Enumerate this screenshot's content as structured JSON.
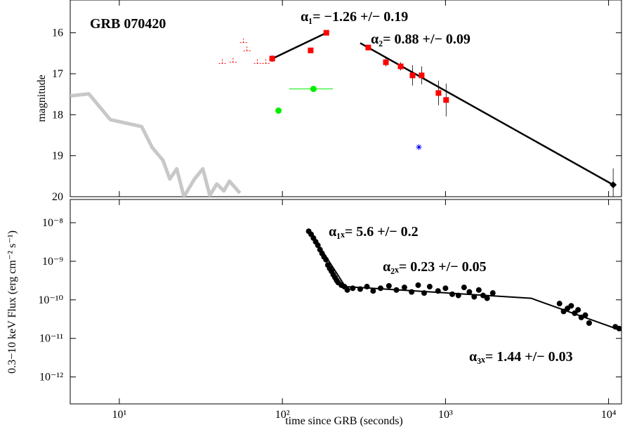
{
  "chart_data": [
    {
      "type": "scatter",
      "title": "GRB 070420",
      "ylabel": "magnitude",
      "xscale": "log",
      "xlim": [
        5,
        12000
      ],
      "xticks": [
        10,
        100,
        1000,
        10000
      ],
      "ylim": [
        15.2,
        20
      ],
      "yreverse": true,
      "yticks": [
        16,
        17,
        18,
        19,
        20
      ],
      "annotations": [
        "α₁= −1.26 +/− 0.19",
        "α₂= 0.88 +/− 0.09"
      ],
      "series": [
        {
          "marker": "line",
          "color": "#c8c8c8",
          "linewidth": 5,
          "x": [
            5,
            6.5,
            8.8,
            13.7,
            15.9,
            18.5,
            20.4,
            22.5,
            24.9,
            28.9,
            32.5,
            35.9,
            39.6,
            43.8,
            47.3,
            54.9
          ],
          "values": [
            17.54,
            17.49,
            18.12,
            18.29,
            18.8,
            19.11,
            19.57,
            19.32,
            20.0,
            19.57,
            19.32,
            19.97,
            19.69,
            19.86,
            19.62,
            19.91
          ]
        },
        {
          "marker": "tick",
          "color": "#ff0000",
          "x": [
            42.8,
            49.8,
            57.7,
            60.6,
            70.3,
            79.2
          ],
          "values": [
            16.75,
            16.72,
            16.24,
            16.44,
            16.75,
            16.75
          ]
        },
        {
          "marker": "line",
          "color": "#000000",
          "linewidth": 2.5,
          "x": [
            87,
            186
          ],
          "values": [
            16.63,
            16.0
          ]
        },
        {
          "marker": "line",
          "color": "#000000",
          "linewidth": 2.5,
          "x": [
            300,
            10670
          ],
          "values": [
            16.25,
            19.71
          ]
        },
        {
          "marker": "square",
          "color": "#ff0000",
          "x": [
            86.6,
            149,
            186,
            336,
            431,
            531,
            628,
            714,
            906,
            1009
          ],
          "values": [
            16.63,
            16.43,
            16.0,
            16.36,
            16.72,
            16.82,
            17.04,
            17.04,
            17.47,
            17.64
          ],
          "yerr": [
            0.08,
            0.06,
            0.05,
            0.05,
            0.1,
            0.1,
            0.25,
            0.22,
            0.3,
            0.4
          ]
        },
        {
          "marker": "circle",
          "color": "#00ee00",
          "x": [
            94.6,
            155
          ],
          "values": [
            17.9,
            17.37
          ],
          "xmin": [
            null,
            110
          ],
          "xmax": [
            null,
            204
          ]
        },
        {
          "marker": "star",
          "color": "#0000ff",
          "x": [
            687
          ],
          "values": [
            18.79
          ]
        },
        {
          "marker": "diamond",
          "color": "#000000",
          "x": [
            10670
          ],
          "values": [
            19.71
          ],
          "yerr": [
            0.4
          ]
        }
      ]
    },
    {
      "type": "scatter",
      "xlabel": "time since GRB (seconds)",
      "ylabel": "0.3−10 keV Flux (erg cm⁻² s⁻¹)",
      "xscale": "log",
      "yscale": "log",
      "xlim": [
        5,
        12000
      ],
      "xticks": [
        {
          "value": 10,
          "label": "10¹"
        },
        {
          "value": 100,
          "label": "10²"
        },
        {
          "value": 1000,
          "label": "10³"
        },
        {
          "value": 10000,
          "label": "10⁴"
        }
      ],
      "ylim": [
        2e-13,
        4e-08
      ],
      "yticks": [
        {
          "value": 1e-12,
          "label": "10⁻¹²"
        },
        {
          "value": 1e-11,
          "label": "10⁻¹¹"
        },
        {
          "value": 1e-10,
          "label": "10⁻¹⁰"
        },
        {
          "value": 1e-09,
          "label": "10⁻⁹"
        },
        {
          "value": 1e-08,
          "label": "10⁻⁸"
        }
      ],
      "annotations": [
        "α₁ₓ= 5.6 +/− 0.2",
        "α₂ₓ= 0.23 +/− 0.05",
        "α₃ₓ= 1.44 +/− 0.03"
      ],
      "series": [
        {
          "marker": "line",
          "color": "#000000",
          "linewidth": 2,
          "x": [
            145,
            243,
            3350,
            12000
          ],
          "values": [
            6.6e-09,
            2.2e-10,
            1.1e-10,
            1.6e-11
          ]
        },
        {
          "marker": "dot",
          "color": "#000000",
          "x": [
            145,
            150,
            155,
            160,
            165,
            170,
            175,
            180,
            185,
            190,
            195,
            200,
            205,
            210,
            215,
            220,
            230,
            240,
            250,
            270,
            300,
            330,
            360,
            400,
            450,
            500,
            560,
            620,
            680,
            740,
            800,
            900,
            1000,
            1100,
            1200,
            1300,
            1400,
            1500,
            1600,
            1700,
            1800,
            1950,
            5000,
            5300,
            5600,
            5900,
            6200,
            6500,
            6800,
            7200,
            7600,
            11000,
            11600
          ],
          "values": [
            6e-09,
            5e-09,
            4e-09,
            3.2e-09,
            2.6e-09,
            2e-09,
            1.6e-09,
            1.3e-09,
            1.1e-09,
            8e-10,
            6.5e-10,
            5.5e-10,
            4.5e-10,
            3.8e-10,
            3.2e-10,
            2.8e-10,
            2.4e-10,
            2.2e-10,
            1.8e-10,
            2e-10,
            1.9e-10,
            2.2e-10,
            1.7e-10,
            2e-10,
            2.3e-10,
            1.8e-10,
            2.1e-10,
            1.6e-10,
            2.4e-10,
            1.5e-10,
            2.2e-10,
            1.7e-10,
            2e-10,
            1.4e-10,
            1.3e-10,
            2.1e-10,
            1.6e-10,
            1.2e-10,
            1.8e-10,
            1.3e-10,
            1.1e-10,
            1.5e-10,
            8e-11,
            5e-11,
            6e-11,
            7e-11,
            4.5e-11,
            5.5e-11,
            3.5e-11,
            4e-11,
            2.5e-11,
            2e-11,
            1.8e-11
          ]
        }
      ]
    }
  ]
}
